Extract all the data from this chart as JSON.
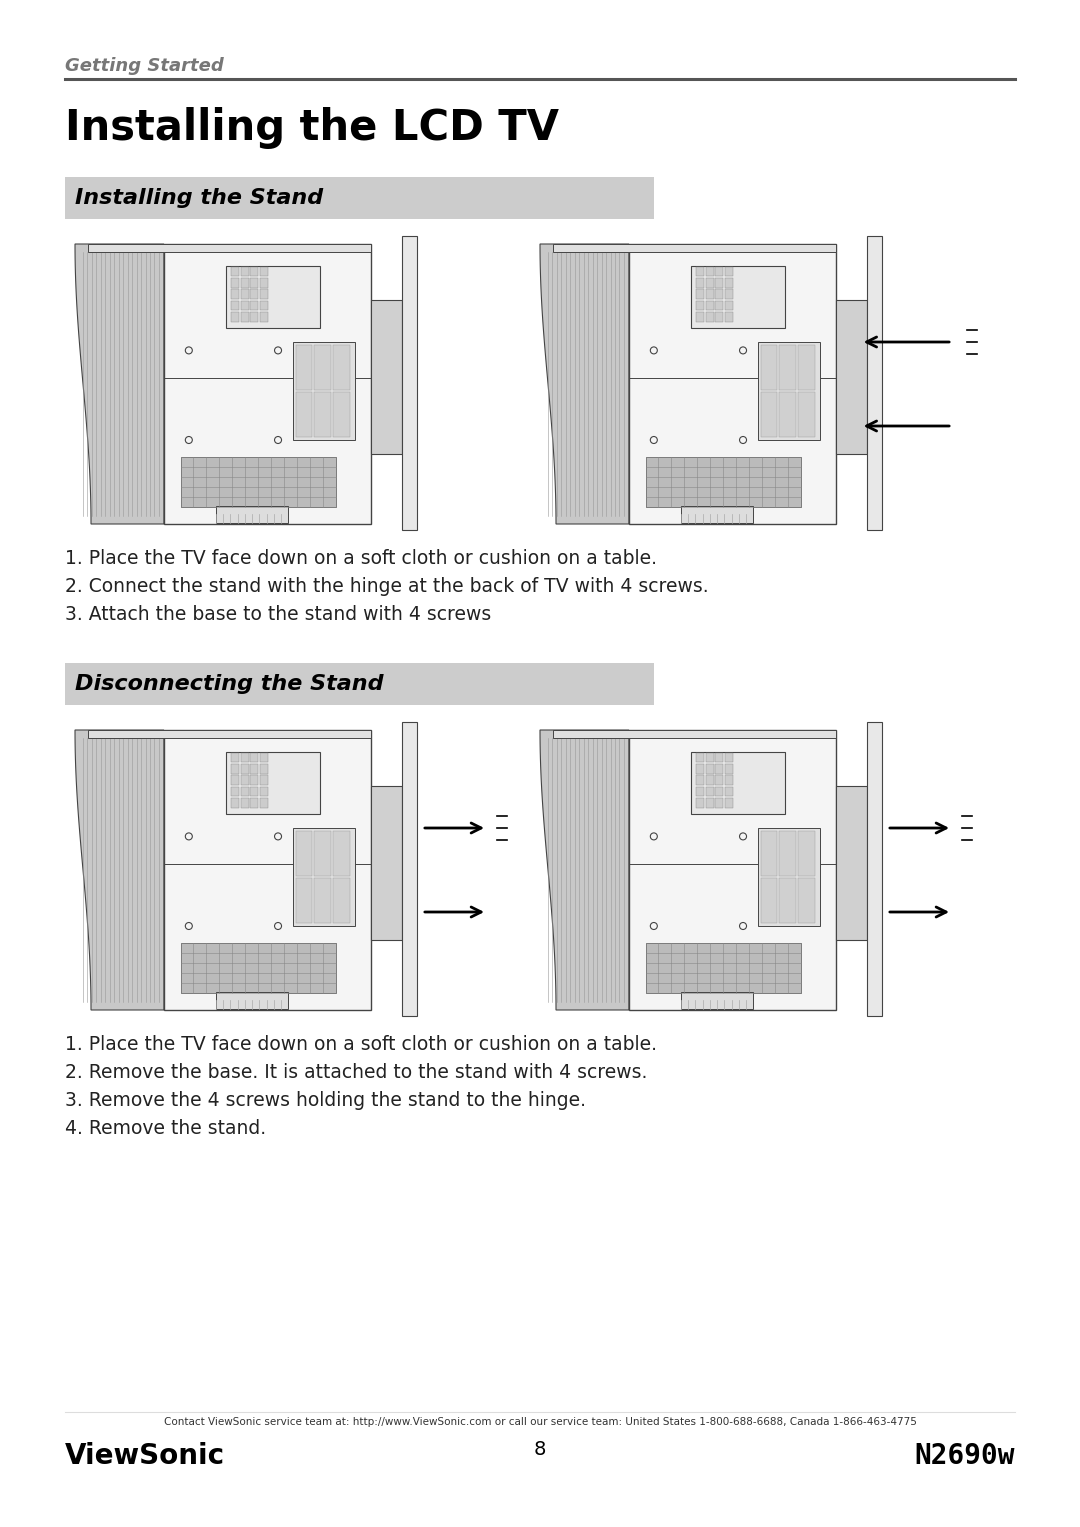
{
  "page_bg": "#ffffff",
  "section_label": "Getting Started",
  "section_label_color": "#777777",
  "section_line_color": "#555555",
  "main_title": "Installing the LCD TV",
  "main_title_color": "#000000",
  "subsection1_title": "  Installing the Stand",
  "subsection2_title": "  Disconnecting the Stand",
  "subsection_bg": "#cccccc",
  "subsection_text_color": "#000000",
  "install_steps": [
    "1. Place the TV face down on a soft cloth or cushion on a table.",
    "2. Connect the stand with the hinge at the back of TV with 4 screws.",
    "3. Attach the base to the stand with 4 screws"
  ],
  "disconnect_steps": [
    "1. Place the TV face down on a soft cloth or cushion on a table.",
    "2. Remove the base. It is attached to the stand with 4 screws.",
    "3. Remove the 4 screws holding the stand to the hinge.",
    "4. Remove the stand."
  ],
  "footer_contact": "Contact ViewSonic service team at: http://www.ViewSonic.com or call our service team: United States 1-800-688-6688, Canada 1-866-463-4775",
  "footer_left": "ViewSonic",
  "footer_center": "8",
  "footer_right": "N2690w",
  "text_color": "#000000",
  "step_text_color": "#222222",
  "tv_body_color": "#f5f5f5",
  "tv_outline_color": "#444444",
  "tv_bezel_color": "#aaaaaa",
  "tv_bezel_dark": "#888888",
  "arrow_color": "#000000",
  "vent_color": "#bbbbbb",
  "vent_line_color": "#888888"
}
